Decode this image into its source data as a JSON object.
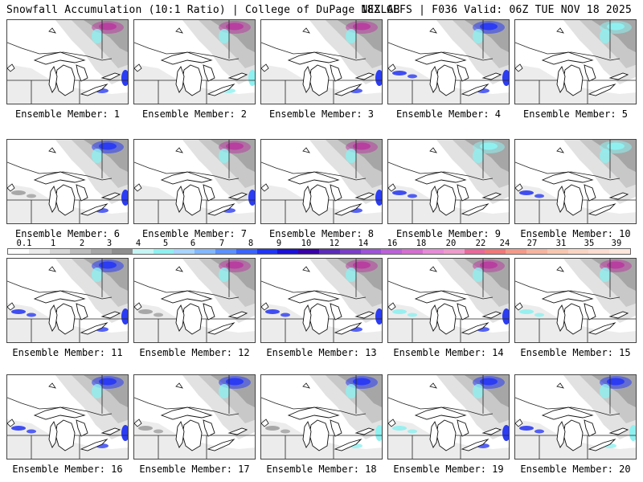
{
  "header": {
    "title": "Snowfall Accumulation (10:1 Ratio) | College of DuPage NEXLAB",
    "run_info": "18Z GEFS | F036 Valid: 06Z TUE NOV 18 2025"
  },
  "panels": [
    {
      "label": "Ensemble Member: 1",
      "north_max": "magenta",
      "east_snow": "blue",
      "west_snow": "none"
    },
    {
      "label": "Ensemble Member: 2",
      "north_max": "magenta",
      "east_snow": "cyan",
      "west_snow": "none"
    },
    {
      "label": "Ensemble Member: 3",
      "north_max": "magenta",
      "east_snow": "blue",
      "west_snow": "none"
    },
    {
      "label": "Ensemble Member: 4",
      "north_max": "blue",
      "east_snow": "blue",
      "west_snow": "blue"
    },
    {
      "label": "Ensemble Member: 5",
      "north_max": "cyan",
      "east_snow": "none",
      "west_snow": "none"
    },
    {
      "label": "Ensemble Member: 6",
      "north_max": "blue",
      "east_snow": "blue",
      "west_snow": "gray"
    },
    {
      "label": "Ensemble Member: 7",
      "north_max": "magenta",
      "east_snow": "blue",
      "west_snow": "none"
    },
    {
      "label": "Ensemble Member: 8",
      "north_max": "magenta",
      "east_snow": "blue",
      "west_snow": "none"
    },
    {
      "label": "Ensemble Member: 9",
      "north_max": "cyan",
      "east_snow": "none",
      "west_snow": "blue"
    },
    {
      "label": "Ensemble Member: 10",
      "north_max": "cyan",
      "east_snow": "none",
      "west_snow": "blue"
    },
    {
      "label": "Ensemble Member: 11",
      "north_max": "blue",
      "east_snow": "blue",
      "west_snow": "blue"
    },
    {
      "label": "Ensemble Member: 12",
      "north_max": "magenta",
      "east_snow": "none",
      "west_snow": "gray"
    },
    {
      "label": "Ensemble Member: 13",
      "north_max": "magenta",
      "east_snow": "blue",
      "west_snow": "blue"
    },
    {
      "label": "Ensemble Member: 14",
      "north_max": "magenta",
      "east_snow": "blue",
      "west_snow": "cyan"
    },
    {
      "label": "Ensemble Member: 15",
      "north_max": "magenta",
      "east_snow": "none",
      "west_snow": "cyan"
    },
    {
      "label": "Ensemble Member: 16",
      "north_max": "blue",
      "east_snow": "blue",
      "west_snow": "blue"
    },
    {
      "label": "Ensemble Member: 17",
      "north_max": "blue",
      "east_snow": "none",
      "west_snow": "gray"
    },
    {
      "label": "Ensemble Member: 18",
      "north_max": "blue",
      "east_snow": "cyan",
      "west_snow": "gray"
    },
    {
      "label": "Ensemble Member: 19",
      "north_max": "blue",
      "east_snow": "blue",
      "west_snow": "cyan"
    },
    {
      "label": "Ensemble Member: 20",
      "north_max": "blue",
      "east_snow": "cyan",
      "west_snow": "blue"
    }
  ],
  "colorscale": {
    "labels": [
      "0.1",
      "1",
      "2",
      "3",
      "4",
      "5",
      "6",
      "7",
      "8",
      "9",
      "10",
      "12",
      "14",
      "16",
      "18",
      "20",
      "22",
      "24",
      "27",
      "31",
      "35",
      "39"
    ],
    "colors": [
      "#ffffff",
      "#ececec",
      "#d6d6d6",
      "#bdbdbd",
      "#a6a6a6",
      "#8e8e8e",
      "#c5f5f5",
      "#8ff0f0",
      "#a8d4ff",
      "#82b8ff",
      "#5a90ff",
      "#3a64ff",
      "#1f34f5",
      "#1a10d8",
      "#3800a8",
      "#5a2bb8",
      "#7a3ec8",
      "#9d52d8",
      "#bb62d8",
      "#d46ed0",
      "#e68ad6",
      "#ee9ccc",
      "#e86a9a",
      "#f07878",
      "#f49a8a",
      "#f6b49e",
      "#f8c6b0",
      "#fad4c2",
      "#fcdcd0",
      "#fde6dc"
    ],
    "accent_blue": "#2c3cf2",
    "accent_magenta": "#b83fa0",
    "accent_cyan": "#8ff0f0"
  }
}
